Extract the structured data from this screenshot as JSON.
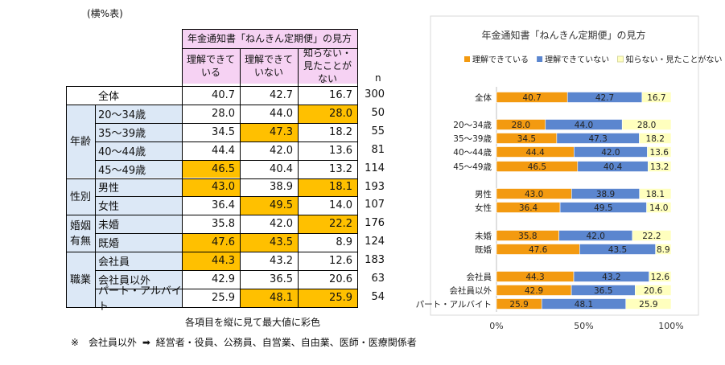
{
  "table": {
    "note_top": "(横%表)",
    "header_group": "年金通知書「ねんきん定期便」の見方",
    "columns": [
      "理解できている",
      "理解できていない",
      "知らない・見たことがない"
    ],
    "n_label": "n",
    "rows": [
      {
        "group": "",
        "label": "全体",
        "values": [
          40.7,
          42.7,
          16.7
        ],
        "n": 300,
        "highlight": [
          false,
          false,
          false
        ]
      },
      {
        "group": "年齢",
        "label": "20～34歳",
        "values": [
          28.0,
          44.0,
          28.0
        ],
        "n": 50,
        "highlight": [
          false,
          false,
          true
        ]
      },
      {
        "group": "年齢",
        "label": "35～39歳",
        "values": [
          34.5,
          47.3,
          18.2
        ],
        "n": 55,
        "highlight": [
          false,
          true,
          false
        ]
      },
      {
        "group": "年齢",
        "label": "40～44歳",
        "values": [
          44.4,
          42.0,
          13.6
        ],
        "n": 81,
        "highlight": [
          false,
          false,
          false
        ]
      },
      {
        "group": "年齢",
        "label": "45～49歳",
        "values": [
          46.5,
          40.4,
          13.2
        ],
        "n": 114,
        "highlight": [
          true,
          false,
          false
        ]
      },
      {
        "group": "性別",
        "label": "男性",
        "values": [
          43.0,
          38.9,
          18.1
        ],
        "n": 193,
        "highlight": [
          true,
          false,
          true
        ]
      },
      {
        "group": "性別",
        "label": "女性",
        "values": [
          36.4,
          49.5,
          14.0
        ],
        "n": 107,
        "highlight": [
          false,
          true,
          false
        ]
      },
      {
        "group": "婚姻有無",
        "label": "未婚",
        "values": [
          35.8,
          42.0,
          22.2
        ],
        "n": 176,
        "highlight": [
          false,
          false,
          true
        ]
      },
      {
        "group": "婚姻有無",
        "label": "既婚",
        "values": [
          47.6,
          43.5,
          8.9
        ],
        "n": 124,
        "highlight": [
          true,
          true,
          false
        ]
      },
      {
        "group": "職業",
        "label": "会社員",
        "values": [
          44.3,
          43.2,
          12.6
        ],
        "n": 183,
        "highlight": [
          true,
          false,
          false
        ]
      },
      {
        "group": "職業",
        "label": "会社員以外",
        "values": [
          42.9,
          36.5,
          20.6
        ],
        "n": 63,
        "highlight": [
          false,
          false,
          false
        ]
      },
      {
        "group": "職業",
        "label": "パート・アルバイト",
        "values": [
          25.9,
          48.1,
          25.9
        ],
        "n": 54,
        "highlight": [
          false,
          true,
          true
        ]
      }
    ],
    "groups": [
      {
        "name": "年齢",
        "lines": [
          "年齢"
        ]
      },
      {
        "name": "性別",
        "lines": [
          "性別"
        ]
      },
      {
        "name": "婚姻有無",
        "lines": [
          "婚姻",
          "有無"
        ]
      },
      {
        "name": "職業",
        "lines": [
          "職業"
        ]
      }
    ],
    "caption": "各項目を縦に見て最大値に彩色",
    "footnote_prefix": "※　会社員以外",
    "footnote_arrow": "➡",
    "footnote_text": "経営者・役員、公務員、自営業、自由業、医師・医療関係者"
  },
  "colors": {
    "highlight": "#ffc000",
    "header_bg": "#f6d2f3",
    "group_bg": "#dce8f6",
    "understand": "#f39a10",
    "not_understand": "#5b86cf",
    "unknown": "#ffffbe"
  },
  "chart_data": {
    "type": "bar",
    "orientation": "horizontal",
    "stacked": "percent",
    "title": "年金通知書「ねんきん定期便」の見方",
    "legend_position": "top",
    "categories": [
      "全体",
      "20～34歳",
      "35～39歳",
      "40～44歳",
      "45～49歳",
      "男性",
      "女性",
      "未婚",
      "既婚",
      "会社員",
      "会社員以外",
      "パート・アルバイト"
    ],
    "series": [
      {
        "name": "理解できている",
        "color": "#f39a10",
        "values": [
          40.7,
          28.0,
          34.5,
          44.4,
          46.5,
          43.0,
          36.4,
          35.8,
          47.6,
          44.3,
          42.9,
          25.9
        ]
      },
      {
        "name": "理解できていない",
        "color": "#5b86cf",
        "values": [
          42.7,
          44.0,
          47.3,
          42.0,
          40.4,
          38.9,
          49.5,
          42.0,
          43.5,
          43.2,
          36.5,
          48.1
        ]
      },
      {
        "name": "知らない・見たことがない",
        "color": "#ffffbe",
        "values": [
          16.7,
          28.0,
          18.2,
          13.6,
          13.2,
          18.1,
          14.0,
          22.2,
          8.9,
          12.6,
          20.6,
          25.9
        ]
      }
    ],
    "xlim": [
      0,
      100
    ],
    "xticks": [
      "0%",
      "50%",
      "100%"
    ],
    "grid": false
  }
}
